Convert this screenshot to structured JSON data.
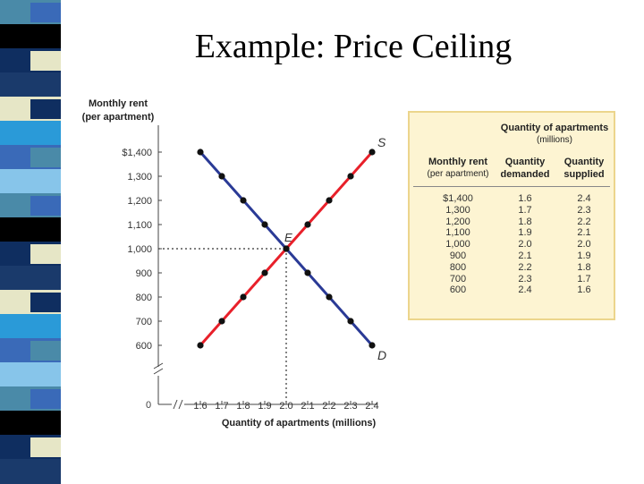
{
  "slide": {
    "title": "Example: Price Ceiling"
  },
  "theme": {
    "strip_colors": [
      "#4a8aa8",
      "#1a3a6b",
      "#3a6ab8",
      "#000000",
      "#e6e6c6",
      "#87c5ea",
      "#0f2e60",
      "#2a9ad8"
    ],
    "supply_color": "#e8202a",
    "demand_color": "#2a3a96",
    "table_bg": "#fdf4d2"
  },
  "chart_data": {
    "type": "line",
    "ylabel_lines": [
      "Monthly rent",
      "(per apartment)"
    ],
    "xlabel": "Quantity of apartments (millions)",
    "x_ticks": [
      "1.6",
      "1.7",
      "1.8",
      "1.9",
      "2.0",
      "2.1",
      "2.2",
      "2.3",
      "2.4"
    ],
    "y_ticks": [
      "$1,400",
      "1,300",
      "1,200",
      "1,100",
      "1,000",
      "900",
      "800",
      "700",
      "600"
    ],
    "origin_label": "0",
    "xlim": [
      1.6,
      2.4
    ],
    "ylim": [
      600,
      1400
    ],
    "series": [
      {
        "name": "D",
        "kind": "demand",
        "x": [
          1.6,
          1.7,
          1.8,
          1.9,
          2.0,
          2.1,
          2.2,
          2.3,
          2.4
        ],
        "y": [
          1400,
          1300,
          1200,
          1100,
          1000,
          900,
          800,
          700,
          600
        ]
      },
      {
        "name": "S",
        "kind": "supply",
        "x": [
          1.6,
          1.7,
          1.8,
          1.9,
          2.0,
          2.1,
          2.2,
          2.3,
          2.4
        ],
        "y": [
          600,
          700,
          800,
          900,
          1000,
          1100,
          1200,
          1300,
          1400
        ]
      }
    ],
    "equilibrium": {
      "label": "E",
      "x": 2.0,
      "y": 1000
    }
  },
  "table": {
    "group_header": "Quantity of apartments",
    "group_sub": "(millions)",
    "col1_title": "Monthly rent",
    "col1_sub": "(per apartment)",
    "col2_title_lines": [
      "Quantity",
      "demanded"
    ],
    "col3_title_lines": [
      "Quantity",
      "supplied"
    ],
    "rows": [
      [
        "$1,400",
        "1.6",
        "2.4"
      ],
      [
        "1,300",
        "1.7",
        "2.3"
      ],
      [
        "1,200",
        "1.8",
        "2.2"
      ],
      [
        "1,100",
        "1.9",
        "2.1"
      ],
      [
        "1,000",
        "2.0",
        "2.0"
      ],
      [
        "900",
        "2.1",
        "1.9"
      ],
      [
        "800",
        "2.2",
        "1.8"
      ],
      [
        "700",
        "2.3",
        "1.7"
      ],
      [
        "600",
        "2.4",
        "1.6"
      ]
    ]
  }
}
